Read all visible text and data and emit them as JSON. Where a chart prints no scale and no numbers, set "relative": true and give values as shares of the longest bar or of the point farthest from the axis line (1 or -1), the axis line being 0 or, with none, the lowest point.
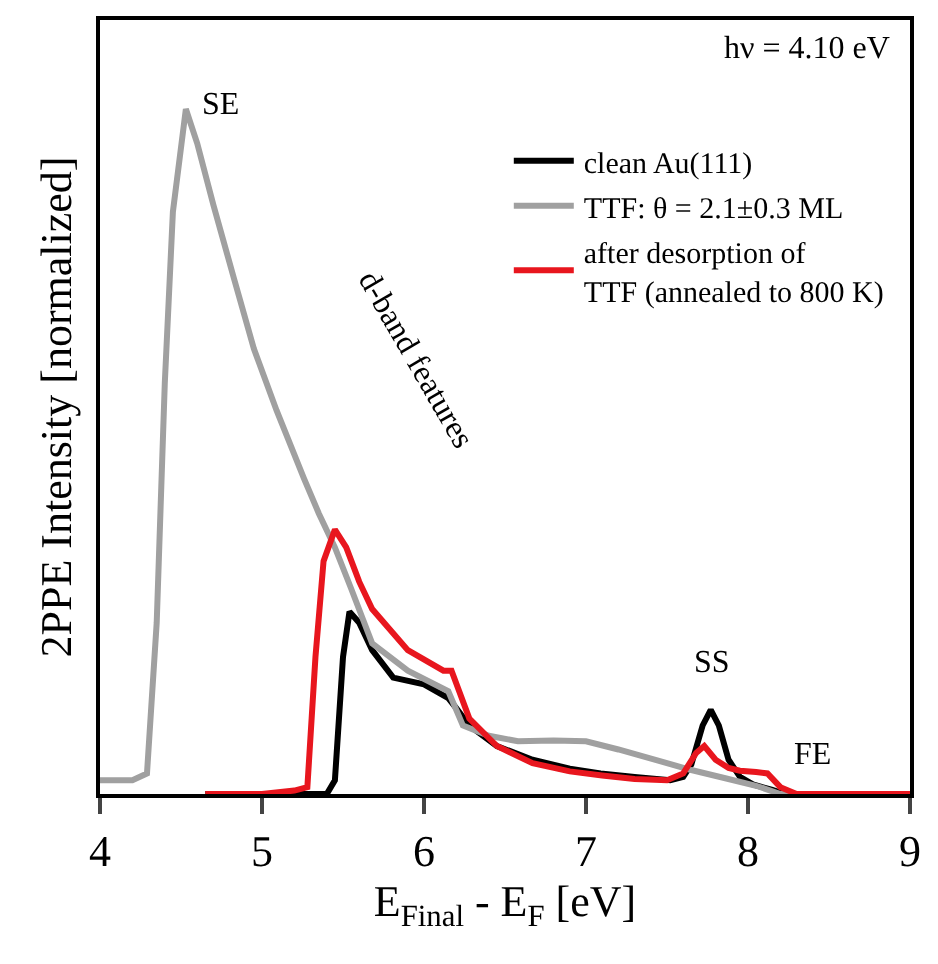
{
  "chart_data": {
    "type": "line",
    "relative": true,
    "xlabel": "E$_{Final}$ - E$_{F}$ [eV]",
    "ylabel": "2PPE Intensity [normalized]",
    "xlim": [
      4,
      9
    ],
    "xticks": [
      4,
      5,
      6,
      7,
      8,
      9
    ],
    "legend": "top right",
    "marker": "none",
    "line_style": "solid",
    "annotations": [
      "hν = 4.10 eV",
      "SE",
      "d-band features",
      "SS",
      "FE"
    ],
    "series": [
      {
        "name": "clean Au(111)",
        "color": "#000000",
        "x": [
          4.65,
          5.0,
          5.4,
          5.45,
          5.5,
          5.54,
          5.6,
          5.68,
          5.81,
          6.0,
          6.15,
          6.2,
          6.28,
          6.45,
          6.67,
          6.9,
          7.09,
          7.3,
          7.52,
          7.6,
          7.65,
          7.72,
          7.77,
          7.82,
          7.88,
          7.95,
          8.03,
          8.15,
          8.23,
          8.3
        ],
        "values": [
          0,
          0,
          0,
          0.02,
          0.2,
          0.266,
          0.25,
          0.21,
          0.17,
          0.16,
          0.14,
          0.125,
          0.1,
          0.07,
          0.05,
          0.037,
          0.03,
          0.025,
          0.02,
          0.025,
          0.043,
          0.1,
          0.123,
          0.1,
          0.05,
          0.025,
          0.014,
          0.006,
          0,
          0
        ]
      },
      {
        "name": "TTF: θ = 2.1±0.3 ML",
        "color": "#a0a0a0",
        "x": [
          4.0,
          4.2,
          4.29,
          4.35,
          4.4,
          4.45,
          4.53,
          4.6,
          4.7,
          4.83,
          4.95,
          5.09,
          5.26,
          5.35,
          5.45,
          5.55,
          5.68,
          5.9,
          6.15,
          6.24,
          6.4,
          6.58,
          6.8,
          7.0,
          7.2,
          7.44,
          7.65,
          7.86,
          8.05,
          8.2,
          8.3
        ],
        "values": [
          0.02,
          0.02,
          0.03,
          0.25,
          0.6,
          0.85,
          1.0,
          0.95,
          0.86,
          0.75,
          0.65,
          0.56,
          0.46,
          0.41,
          0.36,
          0.3,
          0.22,
          0.18,
          0.15,
          0.1,
          0.085,
          0.077,
          0.078,
          0.077,
          0.065,
          0.049,
          0.035,
          0.023,
          0.012,
          0,
          0
        ]
      },
      {
        "name": "after desorption of TTF (annealed to 800 K)",
        "color": "#e8161e",
        "x": [
          4.65,
          5.0,
          5.2,
          5.28,
          5.33,
          5.38,
          5.45,
          5.52,
          5.6,
          5.68,
          5.9,
          6.12,
          6.17,
          6.28,
          6.45,
          6.67,
          6.9,
          7.1,
          7.3,
          7.5,
          7.6,
          7.68,
          7.73,
          7.8,
          7.88,
          7.95,
          8.05,
          8.12,
          8.2,
          8.3,
          9.0
        ],
        "values": [
          0,
          0,
          0.005,
          0.01,
          0.2,
          0.34,
          0.386,
          0.36,
          0.31,
          0.27,
          0.21,
          0.18,
          0.18,
          0.11,
          0.07,
          0.045,
          0.033,
          0.027,
          0.022,
          0.02,
          0.03,
          0.06,
          0.07,
          0.05,
          0.038,
          0.034,
          0.032,
          0.03,
          0.01,
          0,
          0
        ]
      }
    ]
  }
}
